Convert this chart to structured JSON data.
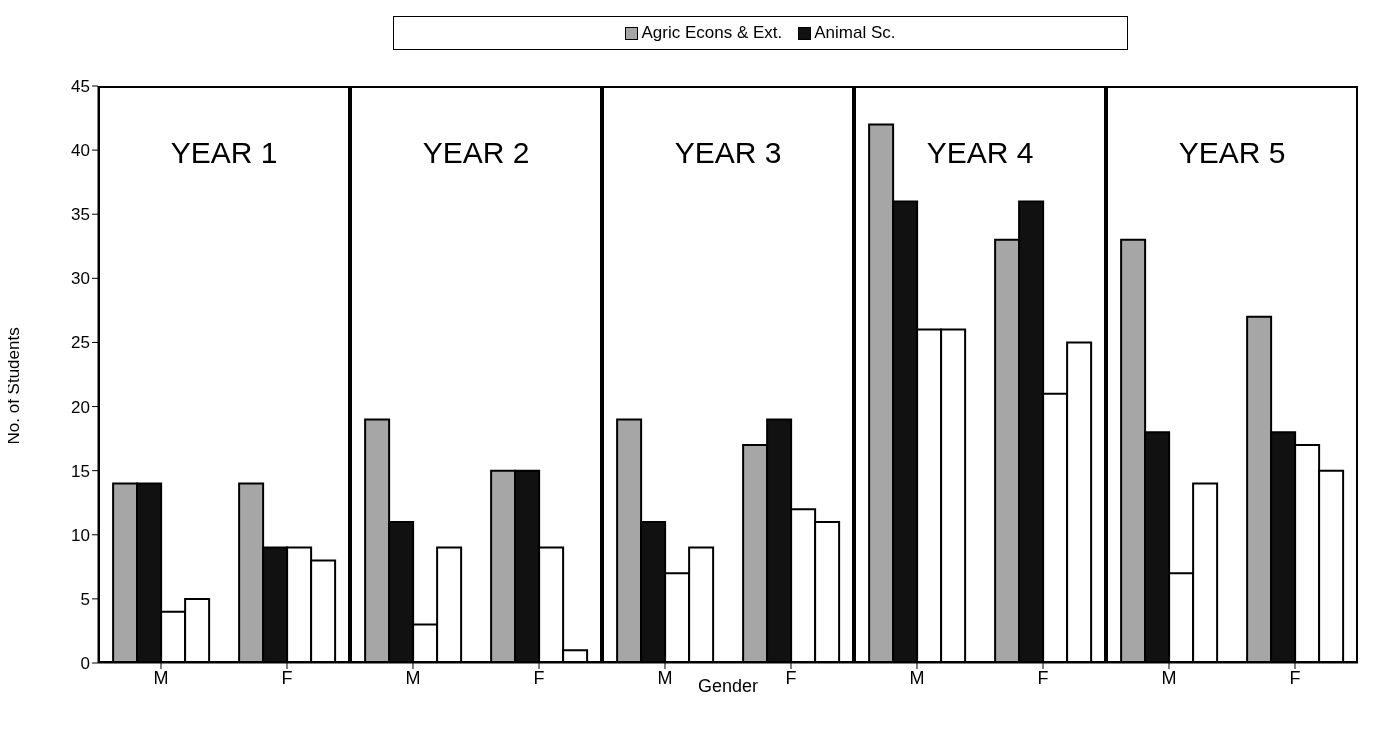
{
  "chart_data": [
    {
      "type": "bar",
      "title": "YEAR 1",
      "categories": [
        "M",
        "F"
      ],
      "ylabel": "No. of Students",
      "ylim": [
        0,
        45
      ],
      "yticks": [
        0,
        5,
        10,
        15,
        20,
        25,
        30,
        35,
        40,
        45
      ],
      "legend": "top",
      "grid": false,
      "series": [
        {
          "name": "Agric Econs & Ext.",
          "color": "#a6a6a6",
          "values": [
            14,
            14
          ]
        },
        {
          "name": "Animal Sc.",
          "color": "#111111",
          "values": [
            14,
            9
          ]
        },
        {
          "color": "#ffffff",
          "values": [
            4,
            9
          ]
        },
        {
          "color": "#ffffff",
          "values": [
            5,
            8
          ]
        }
      ]
    },
    {
      "type": "bar",
      "title": "YEAR 2",
      "categories": [
        "M",
        "F"
      ],
      "ylim": [
        0,
        45
      ],
      "tick_labels": "x",
      "grid": false,
      "series": [
        {
          "color": "#a6a6a6",
          "values": [
            19,
            15
          ]
        },
        {
          "color": "#111111",
          "values": [
            11,
            15
          ]
        },
        {
          "color": "#ffffff",
          "values": [
            3,
            9
          ]
        },
        {
          "color": "#ffffff",
          "values": [
            9,
            1
          ]
        }
      ]
    },
    {
      "type": "bar",
      "title": "YEAR 3",
      "categories": [
        "M",
        "F"
      ],
      "xlabel": "Gender",
      "ylim": [
        0,
        45
      ],
      "tick_labels": "x",
      "grid": false,
      "series": [
        {
          "color": "#a6a6a6",
          "values": [
            19,
            17
          ]
        },
        {
          "color": "#111111",
          "values": [
            11,
            19
          ]
        },
        {
          "color": "#ffffff",
          "values": [
            7,
            12
          ]
        },
        {
          "color": "#ffffff",
          "values": [
            9,
            11
          ]
        }
      ]
    },
    {
      "type": "bar",
      "title": "YEAR 4",
      "categories": [
        "M",
        "F"
      ],
      "ylim": [
        0,
        45
      ],
      "tick_labels": "x",
      "grid": false,
      "series": [
        {
          "color": "#a6a6a6",
          "values": [
            42,
            33
          ]
        },
        {
          "color": "#111111",
          "values": [
            36,
            36
          ]
        },
        {
          "color": "#ffffff",
          "values": [
            26,
            21
          ]
        },
        {
          "color": "#ffffff",
          "values": [
            26,
            25
          ]
        }
      ]
    },
    {
      "type": "bar",
      "title": "YEAR 5",
      "categories": [
        "M",
        "F"
      ],
      "ylim": [
        0,
        45
      ],
      "tick_labels": "x",
      "grid": false,
      "series": [
        {
          "color": "#a6a6a6",
          "values": [
            33,
            27
          ]
        },
        {
          "color": "#111111",
          "values": [
            18,
            18
          ]
        },
        {
          "color": "#ffffff",
          "values": [
            7,
            17
          ]
        },
        {
          "color": "#ffffff",
          "values": [
            14,
            15
          ]
        }
      ]
    }
  ]
}
